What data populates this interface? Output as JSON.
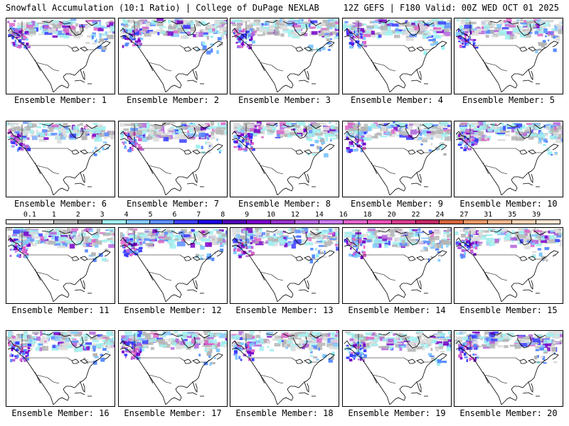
{
  "header": {
    "title_left": "Snowfall Accumulation (10:1 Ratio) | College of DuPage NEXLAB",
    "title_right": "12Z GEFS | F180 Valid: 00Z WED OCT 01 2025"
  },
  "colorbar": {
    "labels": [
      "0.1",
      "1",
      "2",
      "3",
      "4",
      "5",
      "6",
      "7",
      "8",
      "9",
      "10",
      "12",
      "14",
      "16",
      "18",
      "20",
      "22",
      "24",
      "27",
      "31",
      "35",
      "39"
    ],
    "colors": [
      "#ffffff",
      "#dcdcdc",
      "#b4b4b4",
      "#8c8c8c",
      "#9ff0f0",
      "#82c8ff",
      "#5a8cff",
      "#3c3cff",
      "#1e00dc",
      "#5000b4",
      "#7800c8",
      "#9632c8",
      "#b464dc",
      "#c878f0",
      "#dc64c8",
      "#e650b4",
      "#d23c8c",
      "#be2864",
      "#d2643c",
      "#e69664",
      "#f0b48c",
      "#f5d2b4",
      "#fae6d2"
    ]
  },
  "members": [
    {
      "caption": "Ensemble Member: 1"
    },
    {
      "caption": "Ensemble Member: 2"
    },
    {
      "caption": "Ensemble Member: 3"
    },
    {
      "caption": "Ensemble Member: 4"
    },
    {
      "caption": "Ensemble Member: 5"
    },
    {
      "caption": "Ensemble Member: 6"
    },
    {
      "caption": "Ensemble Member: 7"
    },
    {
      "caption": "Ensemble Member: 8"
    },
    {
      "caption": "Ensemble Member: 9"
    },
    {
      "caption": "Ensemble Member: 10"
    },
    {
      "caption": "Ensemble Member: 11"
    },
    {
      "caption": "Ensemble Member: 12"
    },
    {
      "caption": "Ensemble Member: 13"
    },
    {
      "caption": "Ensemble Member: 14"
    },
    {
      "caption": "Ensemble Member: 15"
    },
    {
      "caption": "Ensemble Member: 16"
    },
    {
      "caption": "Ensemble Member: 17"
    },
    {
      "caption": "Ensemble Member: 18"
    },
    {
      "caption": "Ensemble Member: 19"
    },
    {
      "caption": "Ensemble Member: 20"
    }
  ]
}
